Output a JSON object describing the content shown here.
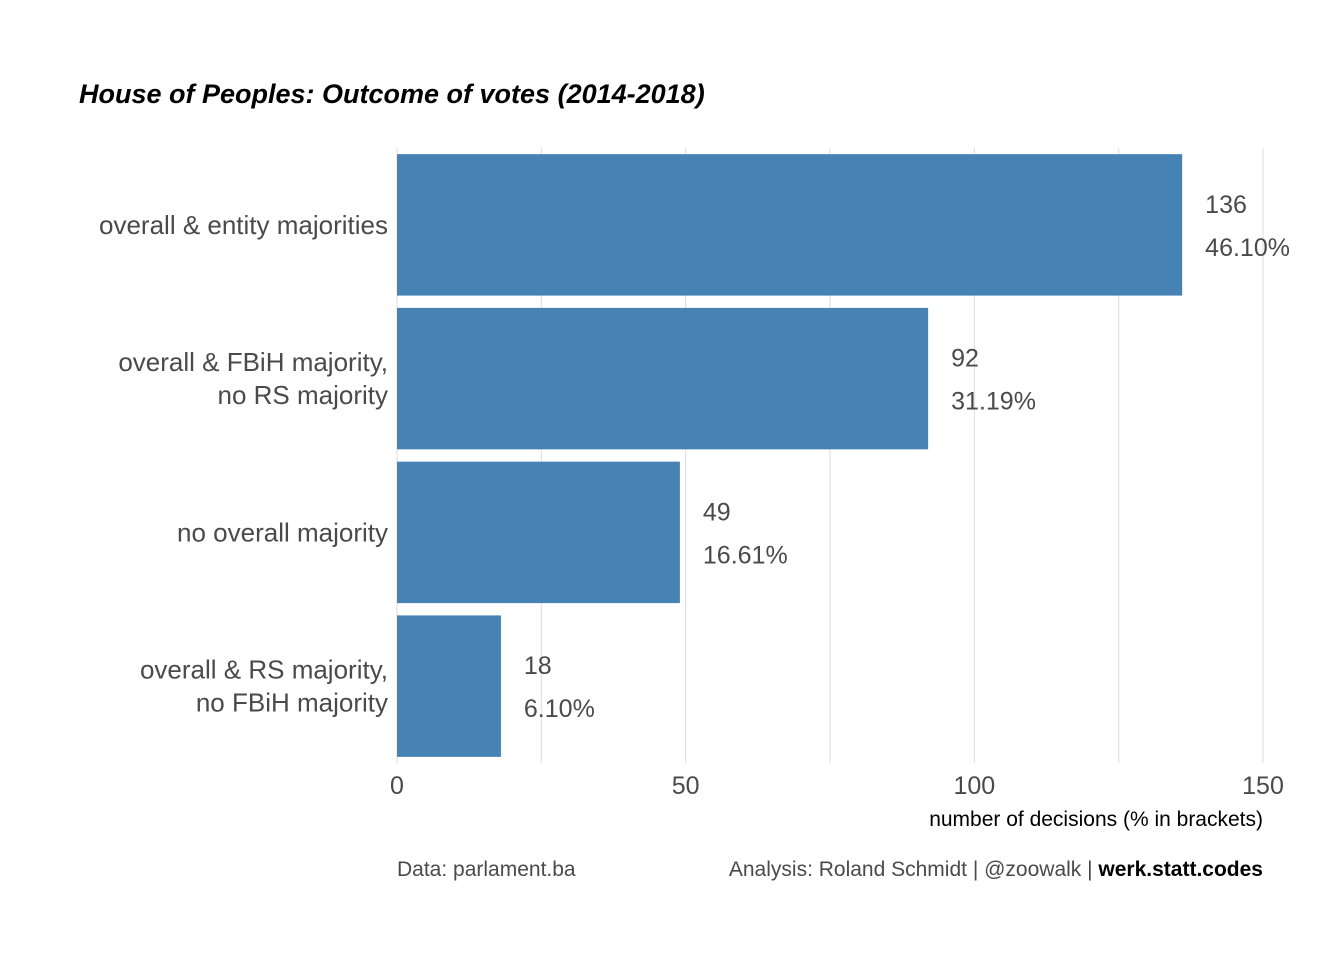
{
  "chart_data": {
    "type": "bar",
    "orientation": "horizontal",
    "title": "House of Peoples: Outcome of votes (2014-2018)",
    "categories": [
      [
        "overall & entity majorities"
      ],
      [
        "overall & FBiH majority,",
        "no RS majority"
      ],
      [
        "no overall majority"
      ],
      [
        "overall & RS majority,",
        "no FBiH majority"
      ]
    ],
    "values": [
      136,
      92,
      49,
      18
    ],
    "percent_labels": [
      "46.10%",
      "31.19%",
      "16.61%",
      "6.10%"
    ],
    "xlabel": "number of decisions (% in brackets)",
    "ylabel": "",
    "xlim": [
      0,
      150
    ],
    "x_ticks": [
      0,
      50,
      100,
      150
    ],
    "grid": "vertical",
    "bar_color": "#4682b4"
  },
  "caption": {
    "source": "Data: parlament.ba",
    "analysis_prefix": "Analysis: Roland Schmidt | @zoowalk | ",
    "analysis_bold": "werk.statt.codes"
  },
  "colors": {
    "bar": "#4682b4",
    "grid": "#dcdcdc",
    "text": "#4a4a4a"
  }
}
